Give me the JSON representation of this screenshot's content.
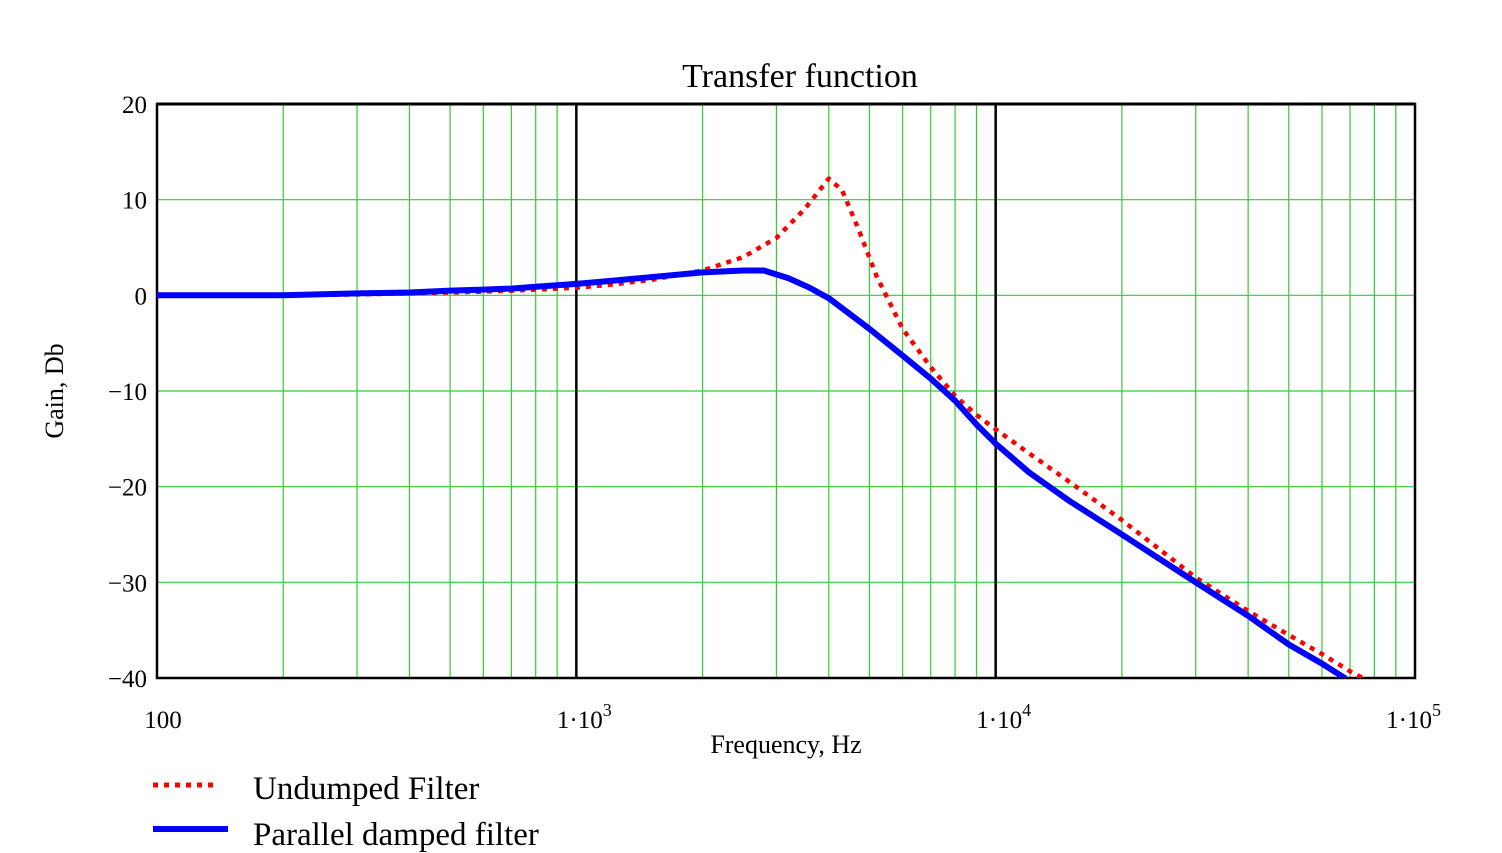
{
  "chart_data": {
    "type": "line",
    "title": "Transfer function",
    "xlabel": "Frequency, Hz",
    "ylabel": "Gain, Db",
    "x_scale": "log",
    "xlim": [
      100,
      100000
    ],
    "ylim": [
      -40,
      20
    ],
    "grid": true,
    "grid_color": "#33cc33",
    "y_ticks": [
      {
        "value": 20,
        "label": "20"
      },
      {
        "value": 10,
        "label": "10"
      },
      {
        "value": 0,
        "label": "0"
      },
      {
        "value": -10,
        "label": "−10"
      },
      {
        "value": -20,
        "label": "−20"
      },
      {
        "value": -30,
        "label": "−30"
      },
      {
        "value": -40,
        "label": "−40"
      }
    ],
    "x_ticks": [
      {
        "value": 100,
        "base": "100",
        "exp": ""
      },
      {
        "value": 1000,
        "base": "1·10",
        "exp": "3"
      },
      {
        "value": 10000,
        "base": "1·10",
        "exp": "4"
      },
      {
        "value": 100000,
        "base": "1·10",
        "exp": "5"
      }
    ],
    "legend_position": "bottom-left",
    "series": [
      {
        "name": "Undumped Filter",
        "color": "#ff0000",
        "style": "dotted",
        "points": [
          [
            100,
            0
          ],
          [
            200,
            0
          ],
          [
            300,
            0.1
          ],
          [
            400,
            0.2
          ],
          [
            500,
            0.3
          ],
          [
            600,
            0.4
          ],
          [
            700,
            0.5
          ],
          [
            800,
            0.6
          ],
          [
            1000,
            0.8
          ],
          [
            1200,
            1.1
          ],
          [
            1500,
            1.6
          ],
          [
            2000,
            2.6
          ],
          [
            2500,
            4.0
          ],
          [
            3000,
            6.0
          ],
          [
            3500,
            9.0
          ],
          [
            4000,
            12.2
          ],
          [
            4300,
            11.0
          ],
          [
            4700,
            7.0
          ],
          [
            5200,
            2.0
          ],
          [
            6000,
            -3.5
          ],
          [
            7000,
            -7.5
          ],
          [
            8000,
            -10.5
          ],
          [
            9000,
            -12.5
          ],
          [
            10000,
            -14.0
          ],
          [
            12000,
            -16.5
          ],
          [
            15000,
            -19.5
          ],
          [
            20000,
            -23.5
          ],
          [
            30000,
            -29.5
          ],
          [
            40000,
            -33.0
          ],
          [
            50000,
            -35.5
          ],
          [
            60000,
            -37.5
          ],
          [
            70000,
            -39.3
          ],
          [
            75000,
            -40.0
          ]
        ]
      },
      {
        "name": "Parallel damped filter",
        "color": "#0000ff",
        "style": "solid",
        "points": [
          [
            100,
            0
          ],
          [
            200,
            0
          ],
          [
            300,
            0.2
          ],
          [
            400,
            0.3
          ],
          [
            500,
            0.5
          ],
          [
            600,
            0.6
          ],
          [
            700,
            0.7
          ],
          [
            800,
            0.9
          ],
          [
            1000,
            1.2
          ],
          [
            1200,
            1.5
          ],
          [
            1500,
            1.9
          ],
          [
            2000,
            2.4
          ],
          [
            2500,
            2.6
          ],
          [
            2800,
            2.6
          ],
          [
            3200,
            1.8
          ],
          [
            3600,
            0.8
          ],
          [
            4000,
            -0.3
          ],
          [
            5000,
            -3.5
          ],
          [
            6000,
            -6.3
          ],
          [
            7000,
            -8.7
          ],
          [
            8000,
            -11.0
          ],
          [
            9000,
            -13.5
          ],
          [
            10000,
            -15.5
          ],
          [
            12000,
            -18.5
          ],
          [
            15000,
            -21.5
          ],
          [
            20000,
            -25.0
          ],
          [
            30000,
            -30.0
          ],
          [
            40000,
            -33.5
          ],
          [
            50000,
            -36.5
          ],
          [
            60000,
            -38.5
          ],
          [
            68000,
            -40.0
          ]
        ]
      }
    ]
  }
}
